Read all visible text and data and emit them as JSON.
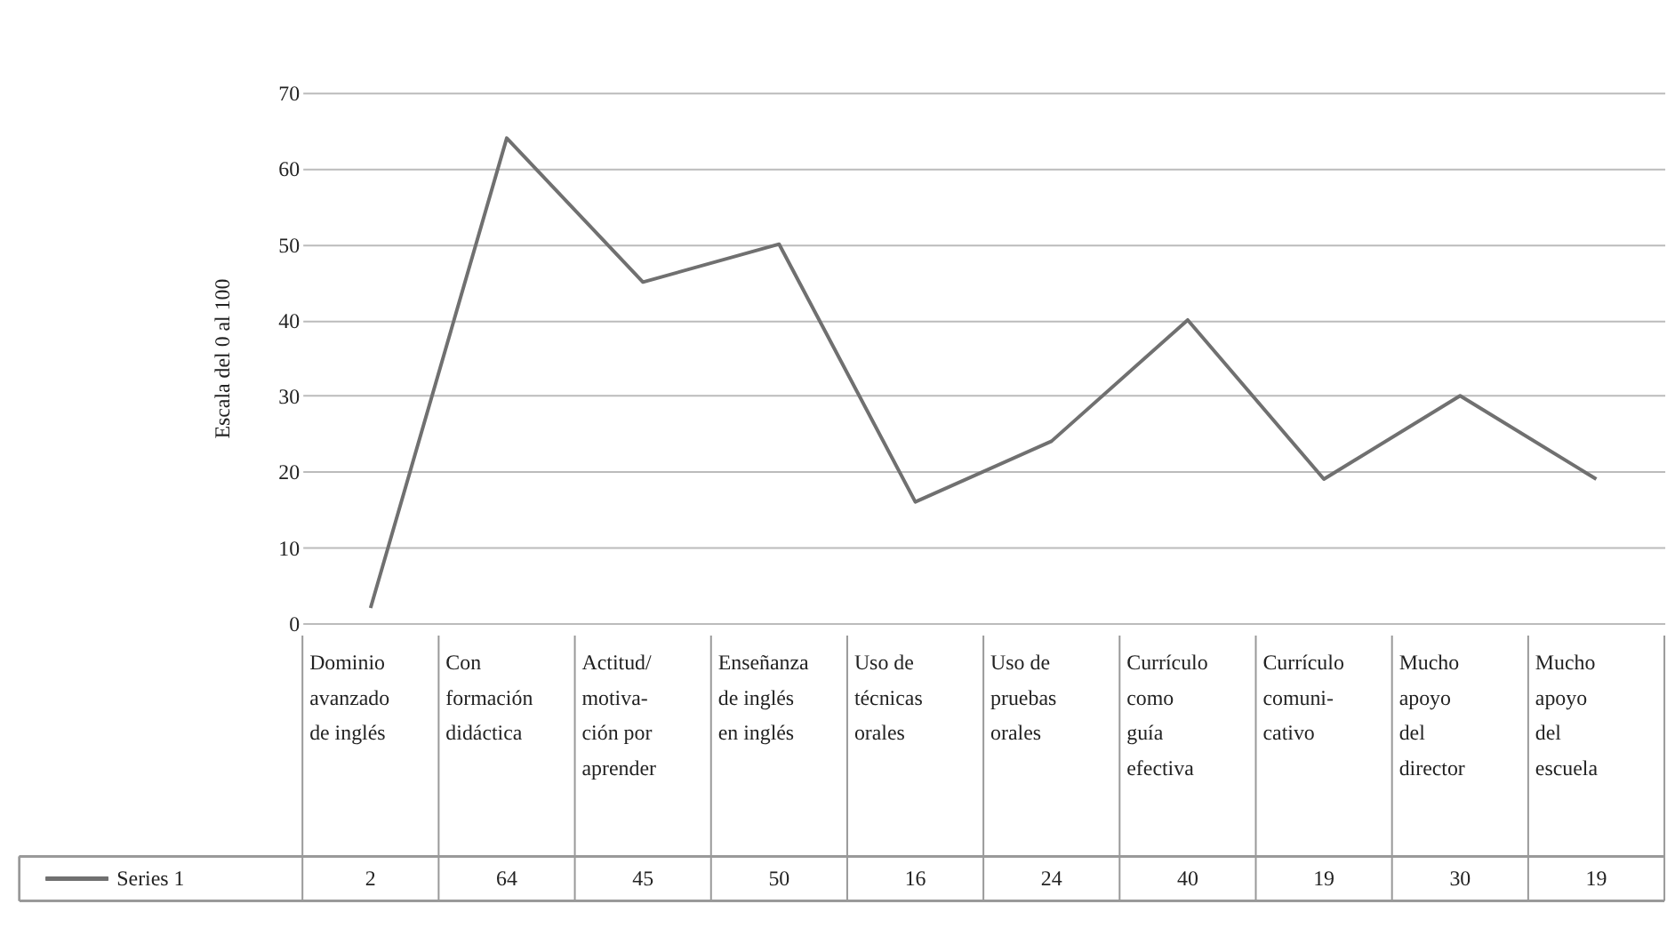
{
  "chart_data": {
    "type": "line",
    "ylabel": "Escala del 0 al 100",
    "categories": [
      "Dominio\navanzado\nde inglés",
      "Con\nformación\ndidáctica",
      "Actitud/\nmotiva-\nción por\naprender",
      "Enseñanza\nde inglés\nen inglés",
      "Uso de\ntécnicas\norales",
      "Uso de\npruebas\norales",
      "Currículo\ncomo\nguía\nefectiva",
      "Currículo\ncomuni-\ncativo",
      "Mucho\napoyo\ndel\ndirector",
      "Mucho\napoyo\ndel\nescuela"
    ],
    "series": [
      {
        "name": "Series 1",
        "color": "#707070",
        "values": [
          2,
          64,
          45,
          50,
          16,
          24,
          40,
          19,
          30,
          19
        ]
      }
    ],
    "ylim": [
      0,
      70
    ],
    "yticks": [
      0,
      10,
      20,
      30,
      40,
      50,
      60,
      70
    ],
    "grid": "y",
    "legend": "bottom left",
    "data_labels": true,
    "marker": "none",
    "line_style": "solid"
  }
}
